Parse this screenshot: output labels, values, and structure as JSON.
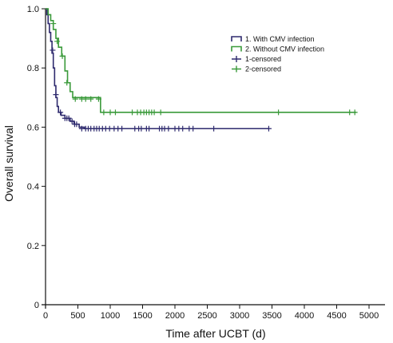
{
  "chart_data": {
    "type": "line",
    "subtype": "kaplan-meier",
    "title": "",
    "xlabel": "Time after UCBT (d)",
    "ylabel": "Overall survival",
    "xlim": [
      0,
      5000
    ],
    "ylim": [
      0,
      1.0
    ],
    "xticks": [
      0,
      500,
      1000,
      1500,
      2000,
      2500,
      3000,
      3500,
      4000,
      4500,
      5000
    ],
    "yticks": [
      0,
      0.2,
      0.4,
      0.6,
      0.8,
      1.0
    ],
    "xtick_labels": [
      "0",
      "500",
      "1000",
      "1500",
      "2000",
      "2500",
      "3000",
      "3500",
      "4000",
      "4500",
      "5000"
    ],
    "ytick_labels": [
      "0",
      "0.2",
      "0.4",
      "0.6",
      "0.8",
      "1.0"
    ],
    "grid": false,
    "legend_position": "top-right",
    "legend": [
      {
        "label": "1. With CMV infection",
        "marker": "box",
        "color": "#2e2a6e"
      },
      {
        "label": "2. Without CMV infection",
        "marker": "box",
        "color": "#3a9a3a"
      },
      {
        "label": "1-censored",
        "marker": "plus",
        "color": "#2e2a6e"
      },
      {
        "label": "2-censored",
        "marker": "plus",
        "color": "#3a9a3a"
      }
    ],
    "series": [
      {
        "name": "1. With CMV infection",
        "color": "#2e2a6e",
        "steps": [
          [
            0,
            1.0
          ],
          [
            20,
            0.98
          ],
          [
            40,
            0.95
          ],
          [
            60,
            0.92
          ],
          [
            80,
            0.89
          ],
          [
            100,
            0.85
          ],
          [
            120,
            0.8
          ],
          [
            140,
            0.74
          ],
          [
            160,
            0.7
          ],
          [
            180,
            0.67
          ],
          [
            200,
            0.65
          ],
          [
            240,
            0.64
          ],
          [
            300,
            0.63
          ],
          [
            380,
            0.62
          ],
          [
            440,
            0.61
          ],
          [
            520,
            0.6
          ],
          [
            600,
            0.595
          ],
          [
            3450,
            0.595
          ]
        ],
        "censored": [
          [
            110,
            0.86
          ],
          [
            160,
            0.71
          ],
          [
            230,
            0.65
          ],
          [
            300,
            0.63
          ],
          [
            330,
            0.63
          ],
          [
            360,
            0.63
          ],
          [
            410,
            0.62
          ],
          [
            450,
            0.61
          ],
          [
            480,
            0.61
          ],
          [
            560,
            0.595
          ],
          [
            620,
            0.595
          ],
          [
            660,
            0.595
          ],
          [
            700,
            0.595
          ],
          [
            750,
            0.595
          ],
          [
            790,
            0.595
          ],
          [
            830,
            0.595
          ],
          [
            880,
            0.595
          ],
          [
            930,
            0.595
          ],
          [
            990,
            0.595
          ],
          [
            1060,
            0.595
          ],
          [
            1120,
            0.595
          ],
          [
            1180,
            0.595
          ],
          [
            1380,
            0.595
          ],
          [
            1440,
            0.595
          ],
          [
            1480,
            0.595
          ],
          [
            1560,
            0.595
          ],
          [
            1600,
            0.595
          ],
          [
            1760,
            0.595
          ],
          [
            1800,
            0.595
          ],
          [
            1840,
            0.595
          ],
          [
            1900,
            0.595
          ],
          [
            2000,
            0.595
          ],
          [
            2060,
            0.595
          ],
          [
            2120,
            0.595
          ],
          [
            2220,
            0.595
          ],
          [
            2280,
            0.595
          ],
          [
            2600,
            0.595
          ],
          [
            3450,
            0.595
          ]
        ]
      },
      {
        "name": "2. Without CMV infection",
        "color": "#3a9a3a",
        "steps": [
          [
            0,
            1.0
          ],
          [
            40,
            0.98
          ],
          [
            80,
            0.96
          ],
          [
            120,
            0.93
          ],
          [
            160,
            0.9
          ],
          [
            200,
            0.87
          ],
          [
            250,
            0.84
          ],
          [
            300,
            0.79
          ],
          [
            340,
            0.75
          ],
          [
            380,
            0.72
          ],
          [
            420,
            0.7
          ],
          [
            850,
            0.65
          ],
          [
            4800,
            0.65
          ]
        ],
        "censored": [
          [
            120,
            0.95
          ],
          [
            180,
            0.89
          ],
          [
            260,
            0.84
          ],
          [
            330,
            0.75
          ],
          [
            460,
            0.695
          ],
          [
            560,
            0.695
          ],
          [
            620,
            0.695
          ],
          [
            700,
            0.695
          ],
          [
            820,
            0.695
          ],
          [
            900,
            0.65
          ],
          [
            1000,
            0.65
          ],
          [
            1080,
            0.65
          ],
          [
            1340,
            0.65
          ],
          [
            1420,
            0.65
          ],
          [
            1470,
            0.65
          ],
          [
            1520,
            0.65
          ],
          [
            1560,
            0.65
          ],
          [
            1600,
            0.65
          ],
          [
            1640,
            0.65
          ],
          [
            1680,
            0.65
          ],
          [
            1780,
            0.65
          ],
          [
            3600,
            0.65
          ],
          [
            4700,
            0.65
          ],
          [
            4780,
            0.65
          ]
        ]
      }
    ]
  }
}
